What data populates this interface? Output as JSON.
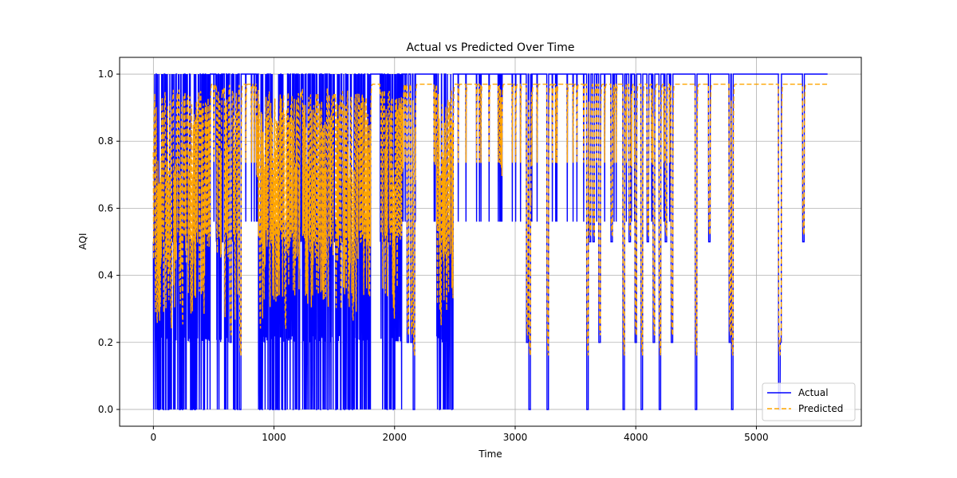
{
  "chart_data": {
    "type": "line",
    "title": "Actual vs Predicted Over Time",
    "xlabel": "Time",
    "ylabel": "AQI",
    "xlim": [
      -280,
      5870
    ],
    "ylim": [
      -0.05,
      1.05
    ],
    "xticks": [
      0,
      1000,
      2000,
      3000,
      4000,
      5000
    ],
    "xtick_labels": [
      "0",
      "1000",
      "2000",
      "3000",
      "4000",
      "5000"
    ],
    "yticks": [
      0.0,
      0.2,
      0.4,
      0.6,
      0.8,
      1.0
    ],
    "ytick_labels": [
      "0.0",
      "0.2",
      "0.4",
      "0.6",
      "0.8",
      "1.0"
    ],
    "grid": true,
    "legend_position": "lower-right",
    "x_max": 5590,
    "series": [
      {
        "name": "Actual",
        "color": "#0000ff",
        "style": "solid",
        "note": "hourly AQI normalized; values cluster at 0.0, ~0.2, 0.5, ~0.56 and 1.0",
        "levels": [
          0.0,
          0.2,
          0.5,
          0.56,
          1.0
        ],
        "active_segments": [
          [
            0,
            470
          ],
          [
            520,
            620
          ],
          [
            650,
            700
          ],
          [
            870,
            1800
          ],
          [
            1880,
            2060
          ],
          [
            2350,
            2490
          ]
        ],
        "sparse_spikes": [
          640,
          720,
          2110,
          2140,
          2160,
          3100,
          3120,
          3270,
          3600,
          3620,
          3650,
          3700,
          3800,
          3900,
          3950,
          4000,
          4050,
          4100,
          4150,
          4200,
          4250,
          4300,
          4500,
          4610,
          4780,
          4800,
          5190,
          5200,
          5390
        ]
      },
      {
        "name": "Predicted",
        "color": "#ffa500",
        "style": "dashed",
        "note": "model predictions oscillating between ~0.17 and ~0.97; flat ~0.97 in quiet periods",
        "plateau": 0.97,
        "min": 0.16
      }
    ]
  }
}
